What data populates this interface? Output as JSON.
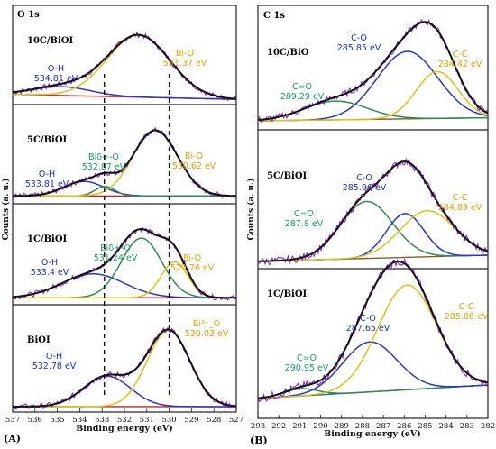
{
  "colors": {
    "raw": "#8a2cc2",
    "envelope": "#111111",
    "blue": "#2a35c9",
    "yellow": "#d8c412",
    "green": "#2f8a4f",
    "green_label": "#12a35b",
    "baseline_O": "#d41c1c",
    "baseline_C": "#8a5a2a",
    "baseline_C1": "#0e7a8a",
    "label_blue": "#1c2fbf",
    "label_orange": "#e0a000",
    "label_green": "#10a060"
  },
  "panel_labels": [
    "(A)",
    "(B)"
  ],
  "chart_data": [
    {
      "type": "line",
      "title": "O 1s",
      "xlabel": "Binding energy (eV)",
      "ylabel": "Counts (a. u.)",
      "xlim": [
        537,
        527
      ],
      "xticks": [
        537,
        536,
        535,
        534,
        533,
        532,
        531,
        530,
        529,
        528,
        527
      ],
      "reference_lines_x": [
        532.9,
        530.0
      ],
      "subpanels": [
        {
          "sample": "10C/BiOI",
          "peaks": [
            {
              "name": "O-H",
              "center": 534.81,
              "height": 0.12,
              "width": 1.3,
              "color": "blue",
              "label": "O-H",
              "value_label": "534.81 eV"
            },
            {
              "name": "Bi-O",
              "center": 531.37,
              "height": 0.85,
              "width": 1.4,
              "color": "yellow",
              "label": "Bi-O",
              "value_label": "531.37 eV"
            }
          ]
        },
        {
          "sample": "5C/BiOI",
          "peaks": [
            {
              "name": "O-H",
              "center": 533.81,
              "height": 0.2,
              "width": 0.9,
              "color": "blue",
              "label": "O-H",
              "value_label": "533.81 eV"
            },
            {
              "name": "Biδ+-O",
              "center": 532.87,
              "height": 0.13,
              "width": 0.45,
              "color": "green",
              "label": "Biδ+-O",
              "value_label": "532.87 eV"
            },
            {
              "name": "Bi-O",
              "center": 530.62,
              "height": 0.9,
              "width": 1.0,
              "color": "yellow",
              "label": "Bi-O",
              "value_label": "530.62 eV"
            }
          ]
        },
        {
          "sample": "1C/BiOI",
          "peaks": [
            {
              "name": "O-H",
              "center": 533.4,
              "height": 0.32,
              "width": 1.4,
              "color": "blue",
              "label": "O-H",
              "value_label": "533.4 eV"
            },
            {
              "name": "Biδ+-O",
              "center": 531.24,
              "height": 0.8,
              "width": 0.9,
              "color": "green",
              "label": "Biδ+-O",
              "value_label": "531.24 eV"
            },
            {
              "name": "Bi-O",
              "center": 529.76,
              "height": 0.48,
              "width": 0.6,
              "color": "yellow",
              "label": "Bi-O",
              "value_label": "529.76 eV"
            }
          ]
        },
        {
          "sample": "BiOI",
          "peaks": [
            {
              "name": "O-H",
              "center": 532.78,
              "height": 0.38,
              "width": 1.05,
              "color": "blue",
              "label": "O-H",
              "value_label": "532.78 eV"
            },
            {
              "name": "Bi3+-O",
              "center": 530.03,
              "height": 0.95,
              "width": 0.95,
              "color": "yellow",
              "label": "Bi³⁺_O",
              "value_label": "530.03 eV"
            }
          ]
        }
      ]
    },
    {
      "type": "line",
      "title": "C 1s",
      "xlabel": "Binding energy (eV)",
      "ylabel": "Counts (a. u.)",
      "xlim": [
        293,
        282
      ],
      "xticks": [
        293,
        292,
        291,
        290,
        289,
        288,
        287,
        286,
        285,
        284,
        283,
        282
      ],
      "subpanels": [
        {
          "sample": "10C/BiO",
          "peaks": [
            {
              "name": "C=O",
              "center": 289.29,
              "height": 0.2,
              "width": 1.5,
              "color": "green",
              "label": "C=O",
              "value_label": "289.29 eV"
            },
            {
              "name": "C-O",
              "center": 285.85,
              "height": 0.72,
              "width": 1.45,
              "color": "blue",
              "label": "C-O",
              "value_label": "285.85 eV"
            },
            {
              "name": "C-C",
              "center": 284.42,
              "height": 0.5,
              "width": 1.0,
              "color": "yellow",
              "label": "C-C",
              "value_label": "284.42 eV"
            }
          ]
        },
        {
          "sample": "5C/BiOI",
          "peaks": [
            {
              "name": "C=O",
              "center": 287.8,
              "height": 0.52,
              "width": 1.25,
              "color": "green",
              "label": "C=O",
              "value_label": "287.8 eV"
            },
            {
              "name": "C-O",
              "center": 285.96,
              "height": 0.4,
              "width": 0.9,
              "color": "blue",
              "label": "C-O",
              "value_label": "285.96 eV"
            },
            {
              "name": "C-C",
              "center": 284.89,
              "height": 0.42,
              "width": 1.3,
              "color": "yellow",
              "label": "C-C",
              "value_label": "284.89 eV"
            }
          ]
        },
        {
          "sample": "1C/BiOI",
          "peaks": [
            {
              "name": "C=O",
              "center": 290.95,
              "height": 0.06,
              "width": 0.8,
              "color": "green",
              "label": "C=O",
              "value_label": "290.95 eV"
            },
            {
              "name": "C-O",
              "center": 287.65,
              "height": 0.42,
              "width": 1.3,
              "color": "blue",
              "label": "C-O",
              "value_label": "287.65 eV"
            },
            {
              "name": "C-C",
              "center": 285.86,
              "height": 0.88,
              "width": 1.4,
              "color": "yellow",
              "label": "C-C",
              "value_label": "285.86 eV"
            }
          ]
        }
      ]
    }
  ]
}
